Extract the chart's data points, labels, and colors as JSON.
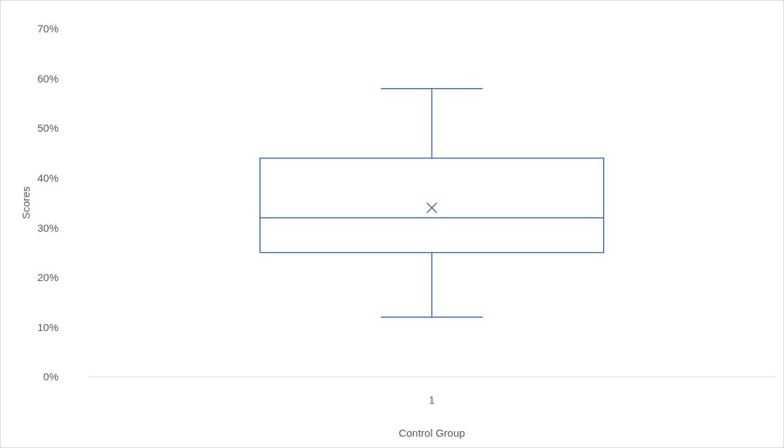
{
  "chart_data": {
    "type": "box",
    "categories": [
      "1"
    ],
    "xlabel": "Control Group",
    "ylabel": "Scores",
    "color": "#3e64a8",
    "boxes": [
      {
        "low": 12,
        "q1": 25,
        "median": 32,
        "q3": 44,
        "high": 58,
        "mean": 34
      }
    ],
    "ylim": [
      0,
      70
    ],
    "yticks": [
      {
        "value": 0,
        "label": "0%"
      },
      {
        "value": 10,
        "label": "10%"
      },
      {
        "value": 20,
        "label": "20%"
      },
      {
        "value": 30,
        "label": "30%"
      },
      {
        "value": 40,
        "label": "40%"
      },
      {
        "value": 50,
        "label": "50%"
      },
      {
        "value": 60,
        "label": "60%"
      },
      {
        "value": 70,
        "label": "70%"
      }
    ]
  }
}
